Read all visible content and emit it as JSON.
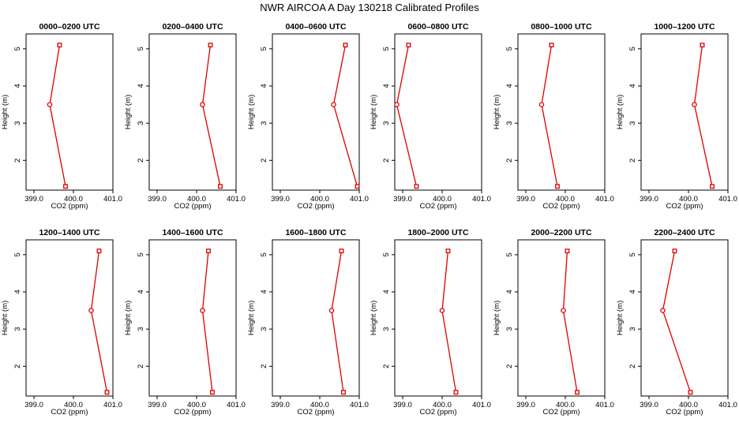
{
  "figure_title": "NWR AIRCOA A  Day 130218  Calibrated Profiles",
  "colors": {
    "series": "#dd0000",
    "axes": "#000000",
    "background": "#ffffff"
  },
  "chart_data": [
    {
      "type": "line",
      "title": "0000–0200 UTC",
      "xlabel": "CO2 (ppm)",
      "ylabel": "Height (m)",
      "xlim": [
        398.8,
        401.0
      ],
      "ylim": [
        1.2,
        5.4
      ],
      "x_ticks": [
        "399.0",
        "400.0",
        "401.0"
      ],
      "y_ticks": [
        "2",
        "3",
        "4",
        "5"
      ],
      "heights": [
        5.1,
        3.5,
        1.3
      ],
      "co2": [
        399.65,
        399.4,
        399.8
      ]
    },
    {
      "type": "line",
      "title": "0200–0400 UTC",
      "xlabel": "CO2 (ppm)",
      "ylabel": "Height (m)",
      "xlim": [
        398.8,
        401.0
      ],
      "ylim": [
        1.2,
        5.4
      ],
      "x_ticks": [
        "399.0",
        "400.0",
        "401.0"
      ],
      "y_ticks": [
        "2",
        "3",
        "4",
        "5"
      ],
      "heights": [
        5.1,
        3.5,
        1.3
      ],
      "co2": [
        400.35,
        400.15,
        400.6
      ]
    },
    {
      "type": "line",
      "title": "0400–0600 UTC",
      "xlabel": "CO2 (ppm)",
      "ylabel": "Height (m)",
      "xlim": [
        398.8,
        401.0
      ],
      "ylim": [
        1.2,
        5.4
      ],
      "x_ticks": [
        "399.0",
        "400.0",
        "401.0"
      ],
      "y_ticks": [
        "2",
        "3",
        "4",
        "5"
      ],
      "heights": [
        5.1,
        3.5,
        1.3
      ],
      "co2": [
        400.65,
        400.35,
        400.95
      ]
    },
    {
      "type": "line",
      "title": "0600–0800 UTC",
      "xlabel": "CO2 (ppm)",
      "ylabel": "Height (m)",
      "xlim": [
        398.8,
        401.0
      ],
      "ylim": [
        1.2,
        5.4
      ],
      "x_ticks": [
        "399.0",
        "400.0",
        "401.0"
      ],
      "y_ticks": [
        "2",
        "3",
        "4",
        "5"
      ],
      "heights": [
        5.1,
        3.5,
        1.3
      ],
      "co2": [
        399.15,
        398.85,
        399.35
      ]
    },
    {
      "type": "line",
      "title": "0800–1000 UTC",
      "xlabel": "CO2 (ppm)",
      "ylabel": "Height (m)",
      "xlim": [
        398.8,
        401.0
      ],
      "ylim": [
        1.2,
        5.4
      ],
      "x_ticks": [
        "399.0",
        "400.0",
        "401.0"
      ],
      "y_ticks": [
        "2",
        "3",
        "4",
        "5"
      ],
      "heights": [
        5.1,
        3.5,
        1.3
      ],
      "co2": [
        399.65,
        399.4,
        399.8
      ]
    },
    {
      "type": "line",
      "title": "1000–1200 UTC",
      "xlabel": "CO2 (ppm)",
      "ylabel": "Height (m)",
      "xlim": [
        398.8,
        401.0
      ],
      "ylim": [
        1.2,
        5.4
      ],
      "x_ticks": [
        "399.0",
        "400.0",
        "401.0"
      ],
      "y_ticks": [
        "2",
        "3",
        "4",
        "5"
      ],
      "heights": [
        5.1,
        3.5,
        1.3
      ],
      "co2": [
        400.35,
        400.15,
        400.6
      ]
    },
    {
      "type": "line",
      "title": "1200–1400 UTC",
      "xlabel": "CO2 (ppm)",
      "ylabel": "Height (m)",
      "xlim": [
        398.8,
        401.0
      ],
      "ylim": [
        1.2,
        5.4
      ],
      "x_ticks": [
        "399.0",
        "400.0",
        "401.0"
      ],
      "y_ticks": [
        "2",
        "3",
        "4",
        "5"
      ],
      "heights": [
        5.1,
        3.5,
        1.3
      ],
      "co2": [
        400.65,
        400.45,
        400.85
      ]
    },
    {
      "type": "line",
      "title": "1400–1600 UTC",
      "xlabel": "CO2 (ppm)",
      "ylabel": "Height (m)",
      "xlim": [
        398.8,
        401.0
      ],
      "ylim": [
        1.2,
        5.4
      ],
      "x_ticks": [
        "399.0",
        "400.0",
        "401.0"
      ],
      "y_ticks": [
        "2",
        "3",
        "4",
        "5"
      ],
      "heights": [
        5.1,
        3.5,
        1.3
      ],
      "co2": [
        400.3,
        400.15,
        400.4
      ]
    },
    {
      "type": "line",
      "title": "1600–1800 UTC",
      "xlabel": "CO2 (ppm)",
      "ylabel": "Height (m)",
      "xlim": [
        398.8,
        401.0
      ],
      "ylim": [
        1.2,
        5.4
      ],
      "x_ticks": [
        "399.0",
        "400.0",
        "401.0"
      ],
      "y_ticks": [
        "2",
        "3",
        "4",
        "5"
      ],
      "heights": [
        5.1,
        3.5,
        1.3
      ],
      "co2": [
        400.55,
        400.3,
        400.6
      ]
    },
    {
      "type": "line",
      "title": "1800–2000 UTC",
      "xlabel": "CO2 (ppm)",
      "ylabel": "Height (m)",
      "xlim": [
        398.8,
        401.0
      ],
      "ylim": [
        1.2,
        5.4
      ],
      "x_ticks": [
        "399.0",
        "400.0",
        "401.0"
      ],
      "y_ticks": [
        "2",
        "3",
        "4",
        "5"
      ],
      "heights": [
        5.1,
        3.5,
        1.3
      ],
      "co2": [
        400.15,
        400.0,
        400.35
      ]
    },
    {
      "type": "line",
      "title": "2000–2200 UTC",
      "xlabel": "CO2 (ppm)",
      "ylabel": "Height (m)",
      "xlim": [
        398.8,
        401.0
      ],
      "ylim": [
        1.2,
        5.4
      ],
      "x_ticks": [
        "399.0",
        "400.0",
        "401.0"
      ],
      "y_ticks": [
        "2",
        "3",
        "4",
        "5"
      ],
      "heights": [
        5.1,
        3.5,
        1.3
      ],
      "co2": [
        400.05,
        399.95,
        400.3
      ]
    },
    {
      "type": "line",
      "title": "2200–2400 UTC",
      "xlabel": "CO2 (ppm)",
      "ylabel": "Height (m)",
      "xlim": [
        398.8,
        401.0
      ],
      "ylim": [
        1.2,
        5.4
      ],
      "x_ticks": [
        "399.0",
        "400.0",
        "401.0"
      ],
      "y_ticks": [
        "2",
        "3",
        "4",
        "5"
      ],
      "heights": [
        5.1,
        3.5,
        1.3
      ],
      "co2": [
        399.65,
        399.35,
        400.05
      ]
    }
  ]
}
